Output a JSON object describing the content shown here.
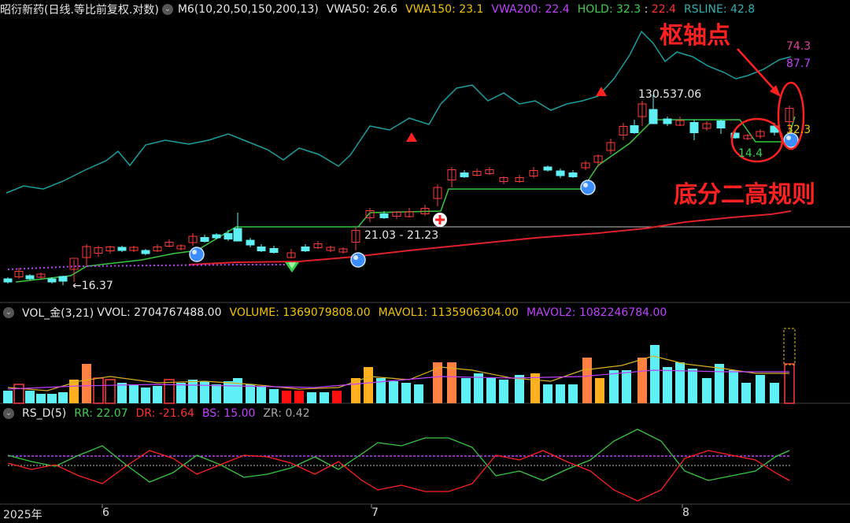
{
  "main_header": {
    "stock_name": "昭衍新药(日线.等比前复权.对数)",
    "m6": "M6(10,20,50,150,200,13)",
    "vwa50": "VWA50: 26.6",
    "vwa150": "VWA150: 23.1",
    "vwa200": "VWA200: 22.4",
    "hold": "HOLD: 32.3",
    "hold_sep": " : ",
    "hold2": "22.4",
    "rsline": "RSLINE: 42.8"
  },
  "vol_header": {
    "name": "VOL_金(3,21)",
    "vvol": "VVOL: 2704767488.00",
    "volume": "VOLUME: 1369079808.00",
    "mavol1": "MAVOL1: 1135906304.00",
    "mavol2": "MAVOL2: 1082246784.00"
  },
  "rs_header": {
    "name": "RS_D(5)",
    "rr": "RR: 22.07",
    "dr": "DR: -21.64",
    "bs": "BS: 15.00",
    "zr": "ZR: 0.42"
  },
  "price_labels": {
    "low_1637": "←16.37",
    "range": "21.03 - 21.23",
    "high": "130.537.06",
    "v743": "74.3",
    "v877": "87.7",
    "v323": "32.3",
    "v144": "14.4"
  },
  "annotations": {
    "pivot": "枢轴点",
    "rule": "底分二高规则"
  },
  "x_axis": [
    "2025年",
    "6",
    "7",
    "8"
  ],
  "colors": {
    "up": "#ff3b3b",
    "down": "#5ff0f5",
    "bg": "#000000",
    "teal_line": "#1a9e9e",
    "green_line": "#36c83e",
    "red_ma": "#e0202a",
    "purple": "#c040ff"
  }
}
